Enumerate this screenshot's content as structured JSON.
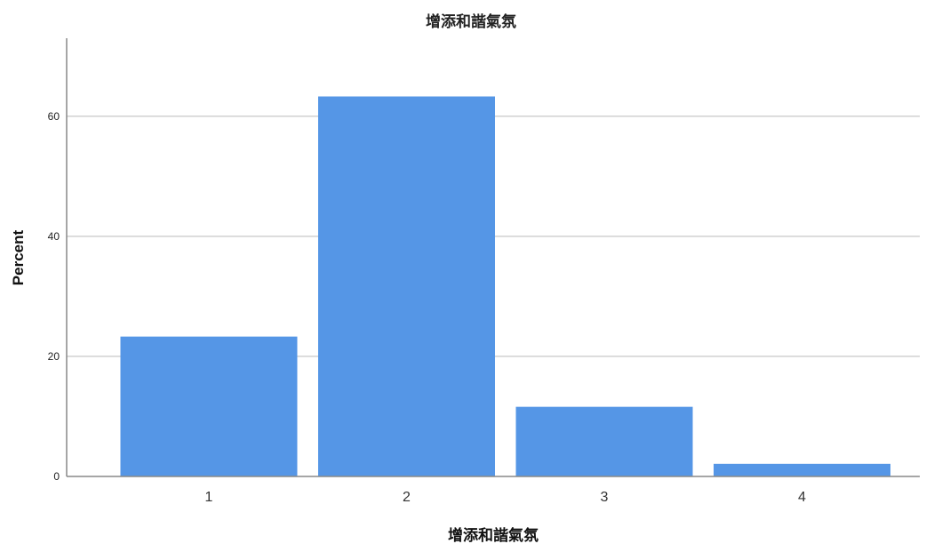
{
  "chart_data": {
    "type": "bar",
    "title": "增添和諧氣氛",
    "xlabel": "增添和諧氣氛",
    "ylabel": "Percent",
    "categories": [
      "1",
      "2",
      "3",
      "4"
    ],
    "values": [
      23.3,
      63.3,
      11.6,
      2.1
    ],
    "ylim": [
      0,
      73
    ],
    "yticks": [
      0,
      20,
      40,
      60
    ],
    "grid": true,
    "bar_color": "#5596e6",
    "axis_color": "#888888",
    "grid_color": "#d0d0d0"
  }
}
